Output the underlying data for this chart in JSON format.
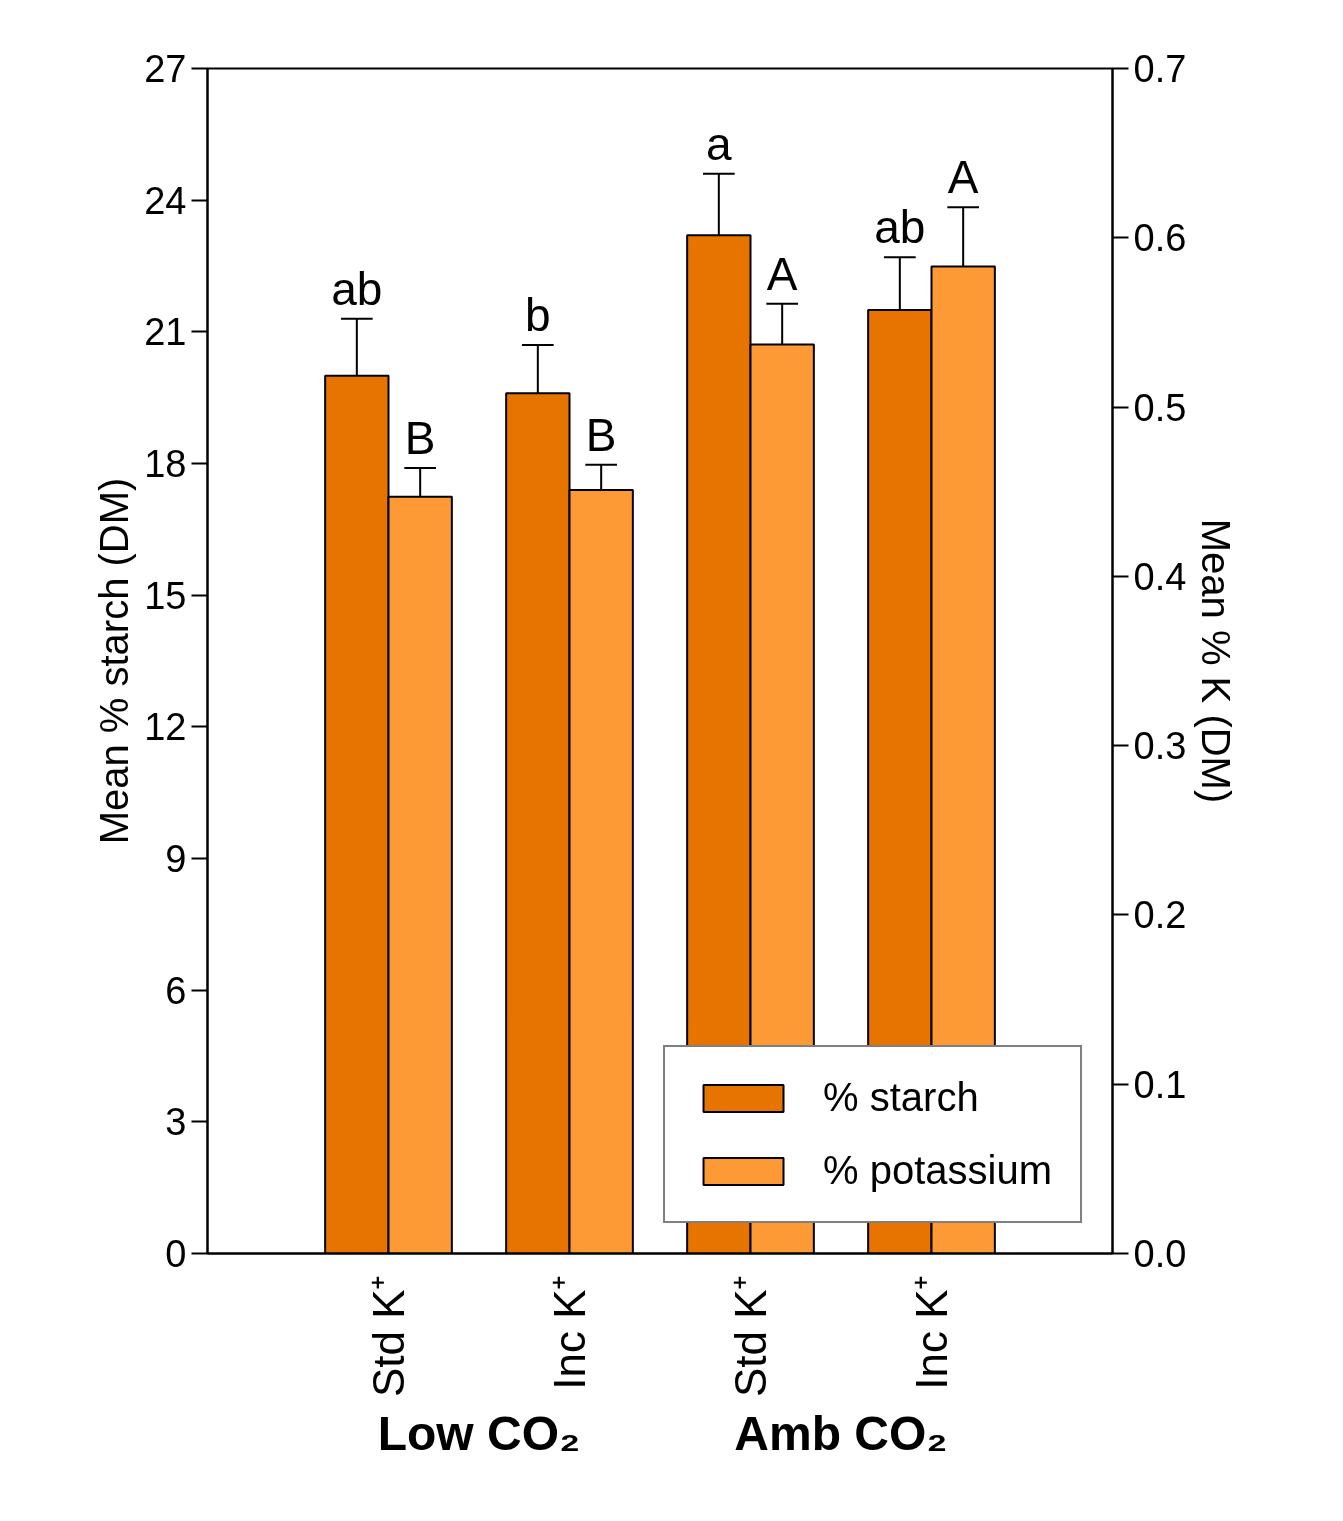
{
  "chart_data": {
    "type": "bar",
    "ylabel": "Mean % starch (DM)",
    "y2label": "Mean % K (DM)",
    "categories": [
      "Std K⁺",
      "Inc K⁺",
      "Std K⁺",
      "Inc K⁺"
    ],
    "annotations": [
      "Low CO₂",
      "Amb CO₂"
    ],
    "series": [
      {
        "name": "% starch",
        "color": "#e87400",
        "values": [
          20.0,
          19.6,
          23.2,
          21.5
        ],
        "errors": [
          1.3,
          1.1,
          1.4,
          1.2
        ],
        "value_labels": [
          "ab",
          "b",
          "a",
          "ab"
        ]
      },
      {
        "name": "% potassium",
        "color": "#fd9a36",
        "axis": "y2",
        "values": [
          0.447,
          0.451,
          0.537,
          0.583
        ],
        "errors": [
          0.017,
          0.015,
          0.024,
          0.035
        ],
        "value_labels": [
          "B",
          "B",
          "A",
          "A"
        ]
      }
    ],
    "ylim": [
      0,
      27
    ],
    "yticks": [
      0,
      3,
      6,
      9,
      12,
      15,
      18,
      21,
      24,
      27
    ],
    "y2lim": [
      0,
      0.7
    ],
    "y2ticks": [
      {
        "value": 0,
        "label": "0.0"
      },
      0.1,
      0.2,
      0.3,
      0.4,
      0.5,
      0.6,
      0.7
    ],
    "legend": "bottom right",
    "grid": false
  }
}
